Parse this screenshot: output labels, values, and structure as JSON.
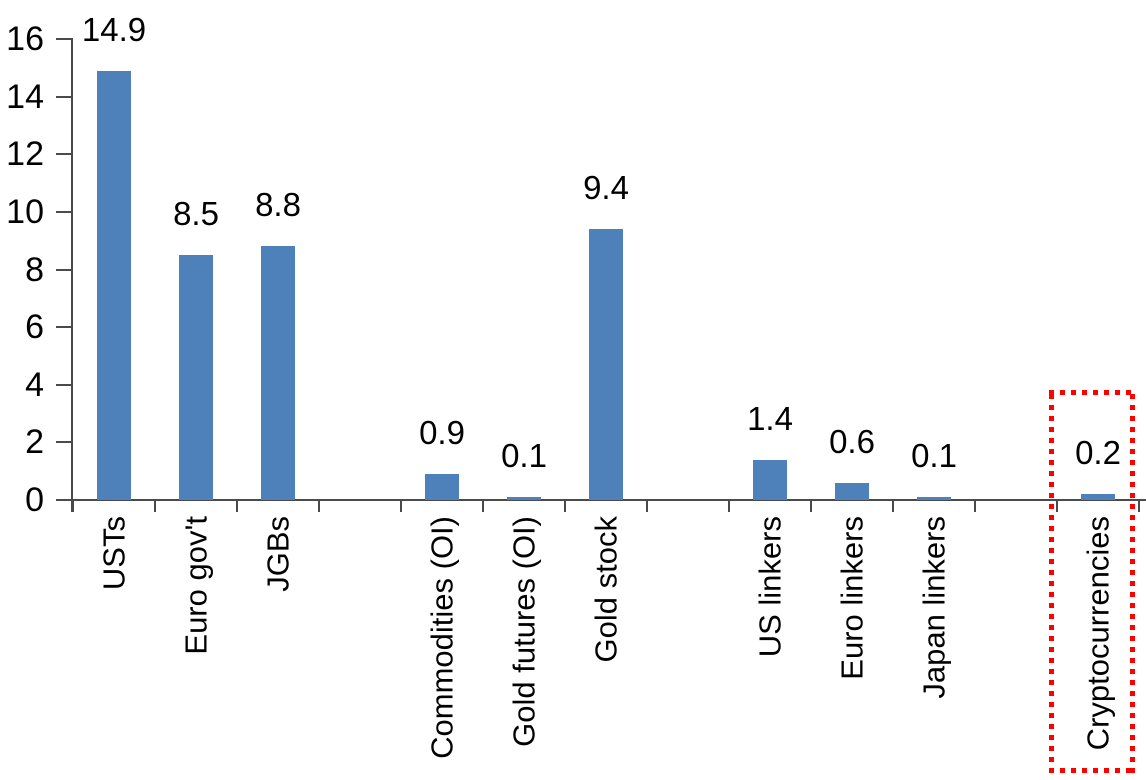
{
  "chart_data": {
    "type": "bar",
    "title": "",
    "xlabel": "",
    "ylabel": "",
    "categories": [
      "USTs",
      "Euro gov't",
      "JGBs",
      "Commodities (OI)",
      "Gold futures (OI)",
      "Gold stock",
      "US linkers",
      "Euro linkers",
      "Japan linkers",
      "Cryptocurrencies"
    ],
    "values": [
      14.9,
      8.5,
      8.8,
      0.9,
      0.1,
      9.4,
      1.4,
      0.6,
      0.1,
      0.2
    ],
    "value_labels": [
      "14.9",
      "8.5",
      "8.8",
      "0.9",
      "0.1",
      "9.4",
      "1.4",
      "0.6",
      "0.1",
      "0.2"
    ],
    "slots": [
      0,
      1,
      2,
      4,
      5,
      6,
      8,
      9,
      10,
      12
    ],
    "total_slots": 13,
    "ylim": [
      0,
      16
    ],
    "yticks": [
      0,
      2,
      4,
      6,
      8,
      10,
      12,
      14,
      16
    ],
    "ytick_labels": [
      "0",
      "2",
      "4",
      "6",
      "8",
      "10",
      "12",
      "14",
      "16"
    ],
    "grid": false,
    "legend": "none",
    "data_labels": true,
    "bar_color": "#4E81BA",
    "axis_color": "#4a4a4a",
    "text_color": "#000000",
    "highlight": {
      "target": "Cryptocurrencies",
      "shape": "dotted-rectangle",
      "color": "#FF0000"
    }
  }
}
